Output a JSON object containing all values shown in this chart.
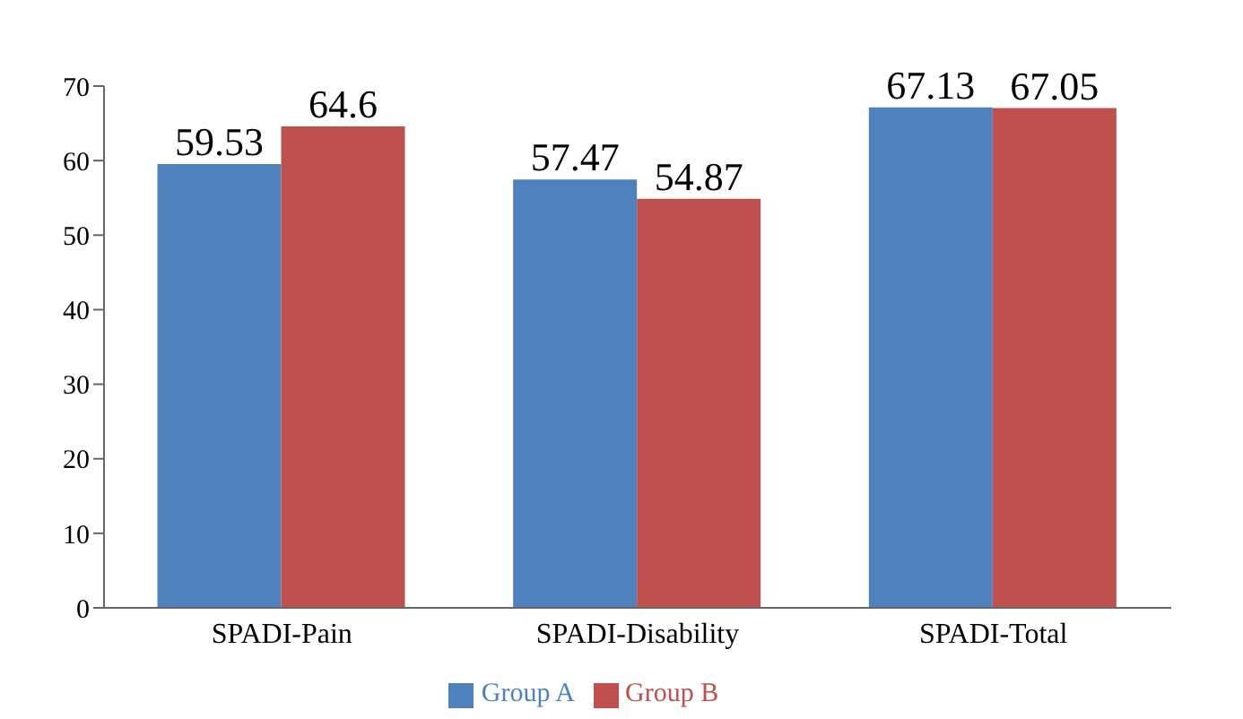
{
  "chart_data": {
    "type": "bar",
    "categories": [
      "SPADI-Pain",
      "SPADI-Disability",
      "SPADI-Total"
    ],
    "series": [
      {
        "name": "Group A",
        "color": "#4f81bd",
        "values": [
          59.53,
          57.47,
          67.13
        ]
      },
      {
        "name": "Group B",
        "color": "#c0504d",
        "values": [
          64.6,
          54.87,
          67.05
        ]
      }
    ],
    "ylim": [
      0,
      70
    ],
    "yticks": [
      0,
      10,
      20,
      30,
      40,
      50,
      60,
      70
    ],
    "data_labels": true,
    "legend": "bottom"
  }
}
